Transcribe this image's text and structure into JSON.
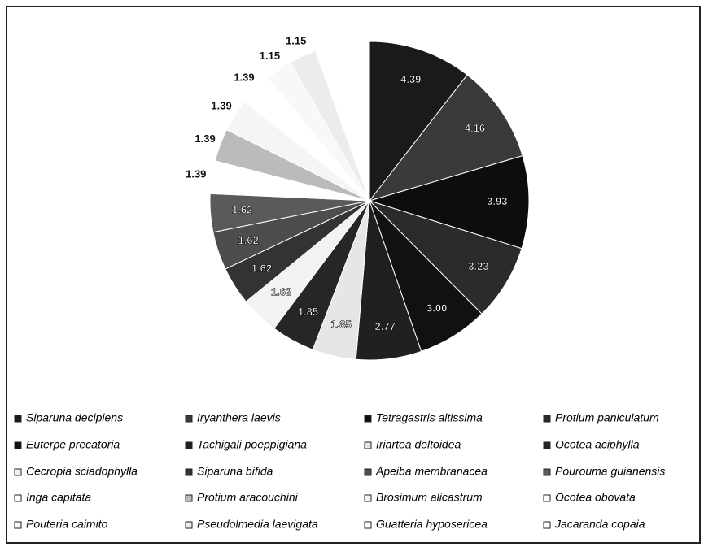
{
  "chart_data": {
    "type": "pie",
    "categories": [
      "Siparuna decipiens",
      "Iryanthera laevis",
      "Tetragastris altissima",
      "Protium paniculatum",
      "Euterpe precatoria",
      "Tachigali poeppigiana",
      "Iriartea deltoidea",
      "Ocotea aciphylla",
      "Cecropia sciadophylla",
      "Siparuna bifida",
      "Apeiba membranacea",
      "Pourouma guianensis",
      "Inga capitata",
      "Protium aracouchini",
      "Brosimum alicastrum",
      "Ocotea obovata",
      "Pouteria caimito",
      "Pseudolmedia laevigata",
      "Guatteria hyposericea",
      "Jacaranda copaia"
    ],
    "values": [
      4.39,
      4.16,
      3.93,
      3.23,
      3.0,
      2.77,
      1.85,
      1.85,
      1.62,
      1.62,
      1.62,
      1.62,
      1.39,
      1.39,
      1.39,
      1.39,
      1.15,
      1.15,
      1.15,
      1.15
    ],
    "value_labels": [
      "4.39",
      "4.16",
      "3.93",
      "3.23",
      "3.00",
      "2.77",
      "1.85",
      "1.85",
      "1.62",
      "1.62",
      "1.62",
      "1.62",
      "1.39",
      "1.39",
      "1.39",
      "1.39",
      "1.15",
      "1.15",
      null,
      null
    ],
    "colors": [
      "#1a1a1a",
      "#3a3a3a",
      "#0d0d0d",
      "#2b2b2b",
      "#111111",
      "#202020",
      "#e6e6e6",
      "#262626",
      "#f2f2f2",
      "#333333",
      "#4d4d4d",
      "#5a5a5a",
      "#ffffff",
      "#bbbbbb",
      "#f5f5f5",
      "#ffffff",
      "#f8f8f8",
      "#ececec",
      "#ffffff",
      "#ffffff"
    ],
    "legend": "bottom"
  }
}
